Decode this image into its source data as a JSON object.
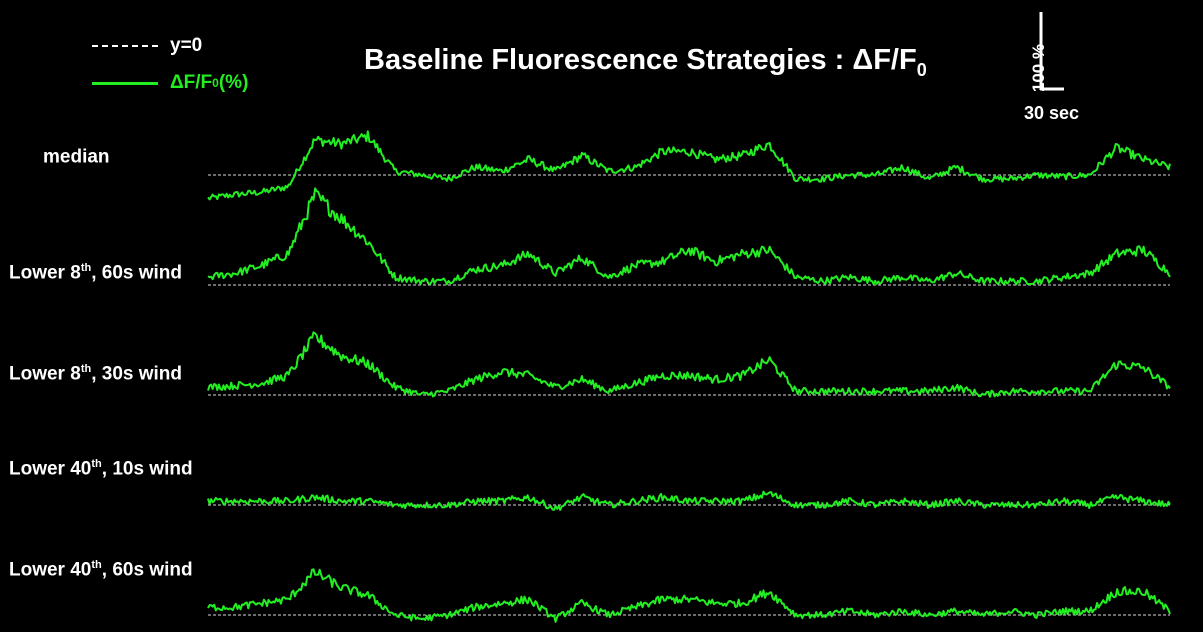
{
  "title": {
    "main": "Baseline Fluorescence Strategies : ΔF/F",
    "sub": "0"
  },
  "legend": {
    "baseline_label": "y=0",
    "trace_label_main": "ΔF/F",
    "trace_label_sub": "0",
    "trace_label_tail": " (%)"
  },
  "scale_bar": {
    "y_label": "100 %",
    "x_label": "30 sec"
  },
  "rows": [
    {
      "label_pre": "median",
      "sup": "",
      "label_post": ""
    },
    {
      "label_pre": "Lower 8",
      "sup": "th",
      "label_post": ", 60s wind"
    },
    {
      "label_pre": "Lower 8",
      "sup": "th",
      "label_post": ", 30s wind"
    },
    {
      "label_pre": "Lower 40",
      "sup": "th",
      "label_post": ", 10s wind"
    },
    {
      "label_pre": "Lower 40",
      "sup": "th",
      "label_post": ", 60s wind"
    }
  ],
  "colors": {
    "trace": "#22ee22",
    "baseline": "#ffffff",
    "background": "#000000"
  },
  "chart_data": {
    "type": "line",
    "title": "Baseline Fluorescence Strategies : ΔF/F0",
    "xlabel": "",
    "ylabel": "",
    "grid": false,
    "legend": "top-left",
    "scale_bar": {
      "x": "30 sec",
      "y": "100 %"
    },
    "series": [
      {
        "name": "median",
        "values": [
          -30,
          -25,
          -22,
          -15,
          45,
          40,
          50,
          5,
          0,
          -5,
          10,
          5,
          20,
          5,
          25,
          5,
          10,
          30,
          30,
          20,
          25,
          40,
          -5,
          -5,
          0,
          0,
          10,
          -5,
          10,
          -5,
          -5,
          0,
          -2,
          0,
          35,
          20,
          10
        ]
      },
      {
        "name": "Lower 8th, 60s wind",
        "values": [
          10,
          15,
          25,
          40,
          115,
          85,
          55,
          10,
          5,
          5,
          20,
          25,
          40,
          15,
          35,
          10,
          25,
          30,
          45,
          30,
          40,
          45,
          10,
          5,
          10,
          5,
          10,
          5,
          15,
          5,
          5,
          5,
          10,
          15,
          40,
          45,
          15
        ]
      },
      {
        "name": "Lower 8th, 30s wind",
        "values": [
          10,
          12,
          15,
          25,
          75,
          50,
          40,
          10,
          0,
          5,
          20,
          30,
          25,
          10,
          20,
          5,
          15,
          25,
          25,
          20,
          25,
          45,
          5,
          5,
          5,
          5,
          5,
          5,
          10,
          0,
          5,
          5,
          5,
          5,
          40,
          35,
          10
        ]
      },
      {
        "name": "Lower 40th, 10s wind",
        "values": [
          5,
          5,
          5,
          5,
          10,
          5,
          5,
          0,
          0,
          0,
          5,
          5,
          10,
          -5,
          10,
          0,
          5,
          10,
          5,
          5,
          5,
          15,
          0,
          0,
          5,
          0,
          5,
          0,
          5,
          0,
          0,
          0,
          5,
          0,
          10,
          5,
          0
        ]
      },
      {
        "name": "Lower 40th, 60s wind",
        "values": [
          10,
          10,
          15,
          20,
          55,
          35,
          25,
          0,
          -5,
          0,
          10,
          15,
          20,
          -5,
          15,
          0,
          10,
          20,
          20,
          15,
          15,
          30,
          0,
          0,
          5,
          0,
          5,
          0,
          5,
          0,
          5,
          0,
          5,
          5,
          30,
          30,
          5
        ]
      }
    ]
  }
}
